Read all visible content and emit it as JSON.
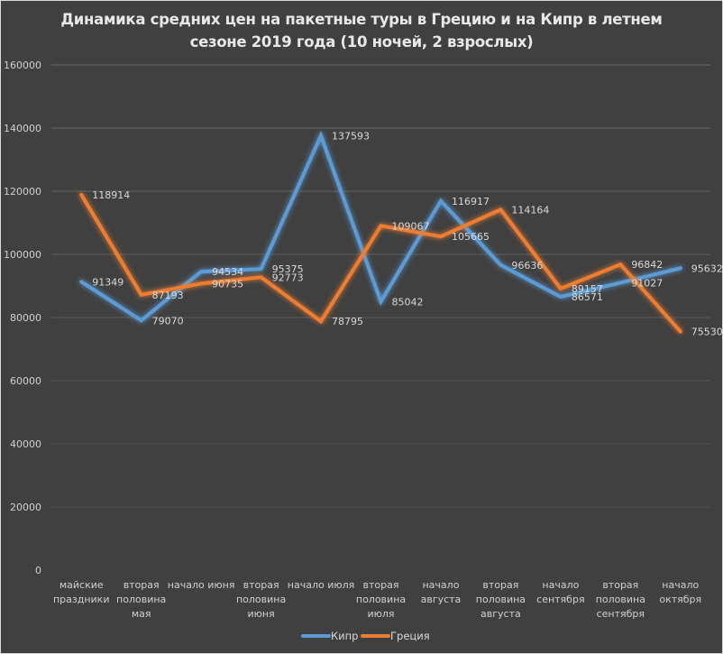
{
  "chart_data": {
    "type": "line",
    "title_lines": [
      "Динамика средних цен на пакетные туры в Грецию и на Кипр в летнем",
      "сезоне 2019 года (10 ночей, 2 взрослых)"
    ],
    "xlabel": "",
    "ylabel": "",
    "ylim": [
      0,
      160000
    ],
    "yticks": [
      "0",
      "20000",
      "40000",
      "60000",
      "80000",
      "100000",
      "120000",
      "140000",
      "160000"
    ],
    "grid": true,
    "legend_position": "bottom",
    "categories": [
      [
        "майские",
        "праздники"
      ],
      [
        "вторая",
        "половина",
        "мая"
      ],
      [
        "начало июня"
      ],
      [
        "вторая",
        "половина",
        "июня"
      ],
      [
        "начало июля"
      ],
      [
        "вторая",
        "половина",
        "июля"
      ],
      [
        "начало",
        "августа"
      ],
      [
        "вторая",
        "половина",
        "августа"
      ],
      [
        "начало",
        "сентября"
      ],
      [
        "вторая",
        "половина",
        "сентября"
      ],
      [
        "начало",
        "октября"
      ]
    ],
    "series": [
      {
        "name": "Кипр",
        "color": "#5b9bd5",
        "values": [
          91349,
          79070,
          94534,
          95375,
          137593,
          85042,
          116917,
          96636,
          86571,
          91027,
          95632
        ]
      },
      {
        "name": "Греция",
        "color": "#ed7d31",
        "values": [
          118914,
          87193,
          90735,
          92773,
          78795,
          109067,
          105665,
          114164,
          89157,
          96842,
          75530
        ]
      }
    ]
  },
  "colors": {
    "background": "#404040",
    "grid": "#5e5e5e",
    "text": "#d9d9d9"
  }
}
